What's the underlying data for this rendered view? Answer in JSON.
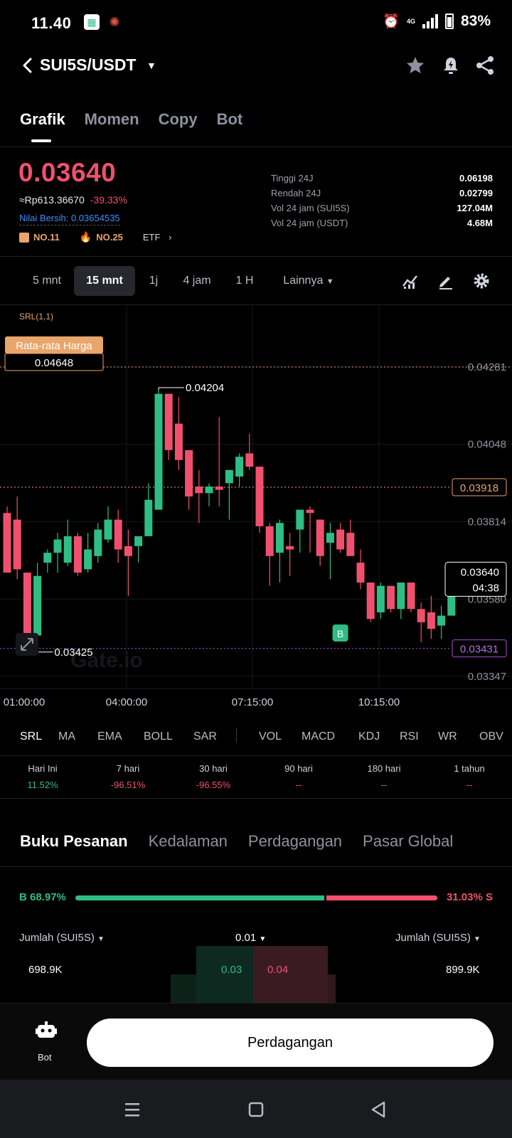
{
  "status_bar": {
    "time": "11.40",
    "network": "4G",
    "battery": "83%"
  },
  "header": {
    "pair": "SUI5S/USDT",
    "icons": [
      "back-icon",
      "caret-down-icon",
      "star-icon",
      "bell-alert-icon",
      "share-icon"
    ]
  },
  "tabs": [
    "Grafik",
    "Momen",
    "Copy",
    "Bot"
  ],
  "price": {
    "last": "0.03640",
    "fiat": "≈Rp613.36670",
    "change": "-39.33%",
    "net_value": "Nilai Bersih: 0.03654535",
    "rank1": "NO.11",
    "rank2": "NO.25",
    "etf": "ETF",
    "colors": {
      "up": "#2ebd85",
      "down": "#f0506e",
      "accent": "#e9a56a"
    }
  },
  "stats": [
    {
      "label": "Tinggi 24J",
      "value": "0.06198"
    },
    {
      "label": "Rendah 24J",
      "value": "0.02799"
    },
    {
      "label": "Vol 24 jam (SUI5S)",
      "value": "127.04M"
    },
    {
      "label": "Vol 24 jam (USDT)",
      "value": "4.68M"
    }
  ],
  "intervals": [
    "5 mnt",
    "15 mnt",
    "1j",
    "4 jam",
    "1 H",
    "Lainnya"
  ],
  "chart_data": {
    "type": "candlestick",
    "indicator_label": "SRL(1,1)",
    "price_axis": [
      "0.04281",
      "0.04048",
      "0.03814",
      "0.03580",
      "0.03347"
    ],
    "time_axis": [
      "01:00:00",
      "04:00:00",
      "07:15:00",
      "10:15:00"
    ],
    "ylim": [
      0.0331,
      0.0447
    ],
    "avg_price": {
      "label": "Rata-rata Harga",
      "value": "0.04648",
      "line_value": 0.04281
    },
    "level_orange": {
      "value": 0.03918,
      "label": "0.03918"
    },
    "level_purple": {
      "value": 0.03431,
      "label": "0.03431"
    },
    "current_price": {
      "value": 0.0364,
      "label": "0.03640",
      "countdown": "04:38"
    },
    "max_marker": "0.04204",
    "min_marker": "0.03425",
    "buy_marker": "B",
    "watermark": "Gate.io",
    "candles": [
      {
        "o": 0.0384,
        "h": 0.0386,
        "l": 0.0366,
        "c": 0.0366
      },
      {
        "o": 0.0382,
        "h": 0.0389,
        "l": 0.0364,
        "c": 0.0367
      },
      {
        "o": 0.0366,
        "h": 0.0366,
        "l": 0.0342,
        "c": 0.0343
      },
      {
        "o": 0.0347,
        "h": 0.0369,
        "l": 0.0347,
        "c": 0.0365
      },
      {
        "o": 0.0369,
        "h": 0.0373,
        "l": 0.0366,
        "c": 0.0372
      },
      {
        "o": 0.0372,
        "h": 0.0378,
        "l": 0.0366,
        "c": 0.0376
      },
      {
        "o": 0.0369,
        "h": 0.0382,
        "l": 0.0368,
        "c": 0.0377
      },
      {
        "o": 0.0377,
        "h": 0.0378,
        "l": 0.0365,
        "c": 0.0366
      },
      {
        "o": 0.0367,
        "h": 0.0378,
        "l": 0.0366,
        "c": 0.0373
      },
      {
        "o": 0.0371,
        "h": 0.0381,
        "l": 0.0369,
        "c": 0.0379
      },
      {
        "o": 0.0376,
        "h": 0.0386,
        "l": 0.0375,
        "c": 0.0382
      },
      {
        "o": 0.0382,
        "h": 0.0385,
        "l": 0.0369,
        "c": 0.0373
      },
      {
        "o": 0.0374,
        "h": 0.0379,
        "l": 0.0359,
        "c": 0.0371
      },
      {
        "o": 0.0374,
        "h": 0.0377,
        "l": 0.0369,
        "c": 0.0377
      },
      {
        "o": 0.0377,
        "h": 0.0393,
        "l": 0.0377,
        "c": 0.0388
      },
      {
        "o": 0.0385,
        "h": 0.0421,
        "l": 0.0385,
        "c": 0.042
      },
      {
        "o": 0.042,
        "h": 0.042,
        "l": 0.04,
        "c": 0.0403
      },
      {
        "o": 0.0411,
        "h": 0.0419,
        "l": 0.0397,
        "c": 0.04
      },
      {
        "o": 0.0403,
        "h": 0.0403,
        "l": 0.0385,
        "c": 0.0389
      },
      {
        "o": 0.0392,
        "h": 0.0397,
        "l": 0.0381,
        "c": 0.039
      },
      {
        "o": 0.039,
        "h": 0.0393,
        "l": 0.0386,
        "c": 0.0392
      },
      {
        "o": 0.0392,
        "h": 0.0413,
        "l": 0.0386,
        "c": 0.0391
      },
      {
        "o": 0.0393,
        "h": 0.0397,
        "l": 0.0382,
        "c": 0.0397
      },
      {
        "o": 0.0395,
        "h": 0.0402,
        "l": 0.0392,
        "c": 0.0401
      },
      {
        "o": 0.0402,
        "h": 0.0408,
        "l": 0.0397,
        "c": 0.0398
      },
      {
        "o": 0.0398,
        "h": 0.0398,
        "l": 0.0378,
        "c": 0.038
      },
      {
        "o": 0.038,
        "h": 0.0381,
        "l": 0.0362,
        "c": 0.0371
      },
      {
        "o": 0.0372,
        "h": 0.0382,
        "l": 0.0363,
        "c": 0.0381
      },
      {
        "o": 0.0374,
        "h": 0.0378,
        "l": 0.0365,
        "c": 0.0373
      },
      {
        "o": 0.0379,
        "h": 0.0385,
        "l": 0.0372,
        "c": 0.0385
      },
      {
        "o": 0.0385,
        "h": 0.0386,
        "l": 0.0372,
        "c": 0.0384
      },
      {
        "o": 0.0382,
        "h": 0.0382,
        "l": 0.0368,
        "c": 0.0371
      },
      {
        "o": 0.0375,
        "h": 0.0381,
        "l": 0.0364,
        "c": 0.0378
      },
      {
        "o": 0.0379,
        "h": 0.0381,
        "l": 0.0372,
        "c": 0.0373
      },
      {
        "o": 0.0378,
        "h": 0.0382,
        "l": 0.0372,
        "c": 0.0371
      },
      {
        "o": 0.0369,
        "h": 0.0373,
        "l": 0.0361,
        "c": 0.0363
      },
      {
        "o": 0.0363,
        "h": 0.0363,
        "l": 0.0351,
        "c": 0.0352
      },
      {
        "o": 0.0354,
        "h": 0.0363,
        "l": 0.0352,
        "c": 0.0362
      },
      {
        "o": 0.0362,
        "h": 0.0362,
        "l": 0.0354,
        "c": 0.0355
      },
      {
        "o": 0.0355,
        "h": 0.0363,
        "l": 0.0352,
        "c": 0.0363
      },
      {
        "o": 0.0363,
        "h": 0.0363,
        "l": 0.0354,
        "c": 0.0355
      },
      {
        "o": 0.0355,
        "h": 0.0357,
        "l": 0.0345,
        "c": 0.0351
      },
      {
        "o": 0.0354,
        "h": 0.0359,
        "l": 0.0346,
        "c": 0.0349
      },
      {
        "o": 0.035,
        "h": 0.0356,
        "l": 0.0346,
        "c": 0.0353
      },
      {
        "o": 0.0353,
        "h": 0.0369,
        "l": 0.0353,
        "c": 0.0364
      }
    ]
  },
  "indicators": [
    "SRL",
    "MA",
    "EMA",
    "BOLL",
    "SAR",
    "VOL",
    "MACD",
    "KDJ",
    "RSI",
    "WR",
    "OBV"
  ],
  "performance": [
    {
      "label": "Hari Ini",
      "value": "11.52%",
      "kind": "pos"
    },
    {
      "label": "7 hari",
      "value": "-96.51%",
      "kind": "neg"
    },
    {
      "label": "30 hari",
      "value": "-96.55%",
      "kind": "neg"
    },
    {
      "label": "90 hari",
      "value": "--",
      "kind": "na"
    },
    {
      "label": "180 hari",
      "value": "--",
      "kind": "na"
    },
    {
      "label": "1 tahun",
      "value": "--",
      "kind": "na"
    }
  ],
  "orderbook": {
    "tabs": [
      "Buku Pesanan",
      "Kedalaman",
      "Perdagangan",
      "Pasar Global"
    ],
    "buy_ratio": "B 68.97%",
    "sell_ratio": "31.03% S",
    "buy_fraction": 0.6897,
    "left_header": "Jumlah (SUI5S)",
    "precision": "0.01",
    "right_header": "Jumlah (SUI5S)",
    "row": {
      "bid_qty": "698.9K",
      "bid_price": "0.03",
      "ask_price": "0.04",
      "ask_qty": "899.9K"
    }
  },
  "bottom": {
    "bot_label": "Bot",
    "trade_button": "Perdagangan"
  },
  "nav": [
    "menu-icon",
    "home-icon",
    "back-triangle-icon"
  ]
}
